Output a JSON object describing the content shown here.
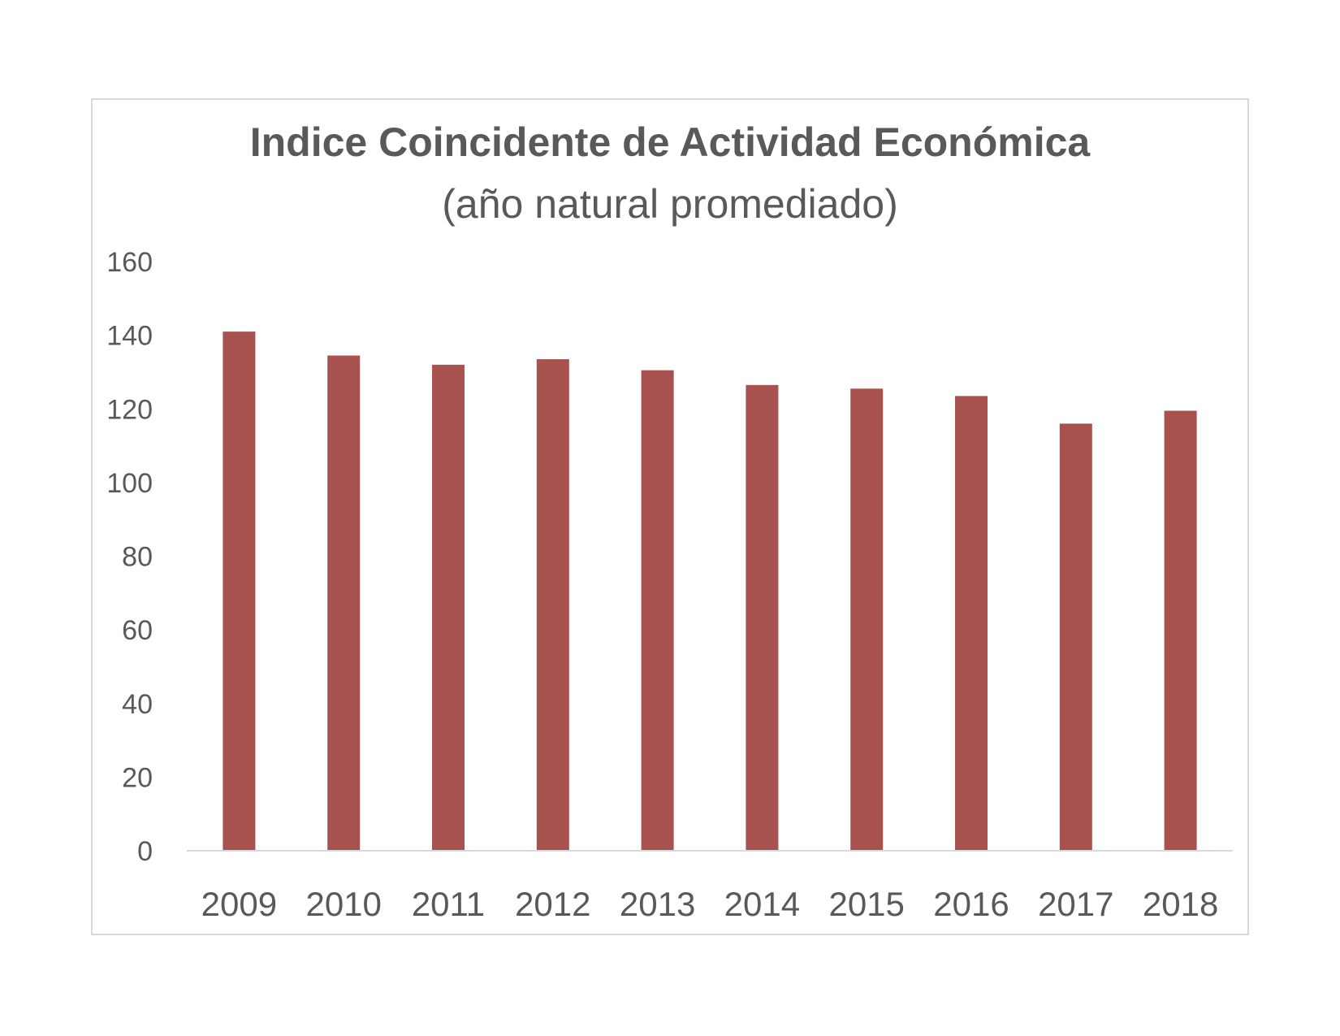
{
  "chart_data": {
    "type": "bar",
    "title": "Indice Coincidente de Actividad Económica",
    "subtitle": "(año natural promediado)",
    "categories": [
      "2009",
      "2010",
      "2011",
      "2012",
      "2013",
      "2014",
      "2015",
      "2016",
      "2017",
      "2018"
    ],
    "values": [
      141,
      134.5,
      132,
      133.5,
      130.5,
      126.5,
      125.5,
      123.5,
      116,
      119.5
    ],
    "ylim": [
      0,
      160
    ],
    "yticks": [
      0,
      20,
      40,
      60,
      80,
      100,
      120,
      140,
      160
    ],
    "xlabel": "",
    "ylabel": "",
    "grid": false,
    "legend": "none",
    "bar_color": "#a85250",
    "axis_color": "#d9d9d9",
    "text_color": "#595959"
  }
}
